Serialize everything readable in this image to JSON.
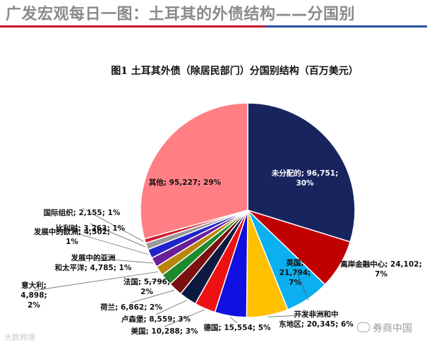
{
  "header": {
    "title": "广发宏观每日一图：土耳其的外债结构——分国别"
  },
  "chart_data": {
    "type": "pie",
    "title": "图1  土耳其外债（除居民部门）分国别结构（百万美元）",
    "slices": [
      {
        "label": "未分配的",
        "value": 96751,
        "value_text": "96,751",
        "pct": "30%",
        "color": "#17245e"
      },
      {
        "label": "离岸金融中心",
        "value": 24102,
        "value_text": "24,102",
        "pct": "7%",
        "color": "#c00000"
      },
      {
        "label": "英国",
        "value": 21794,
        "value_text": "21,794",
        "pct": "7%",
        "color": "#0ab0ef"
      },
      {
        "label": "开发非洲和中东地区",
        "value": 20345,
        "value_text": "20,345",
        "pct": "6%",
        "color": "#ffc000"
      },
      {
        "label": "德国",
        "value": 15554,
        "value_text": "15,554",
        "pct": "5%",
        "color": "#1010e0"
      },
      {
        "label": "美国",
        "value": 10288,
        "value_text": "10,288",
        "pct": "3%",
        "color": "#ee1111"
      },
      {
        "label": "卢森堡",
        "value": 8559,
        "value_text": "8,559",
        "pct": "3%",
        "color": "#0d1a40"
      },
      {
        "label": "荷兰",
        "value": 6862,
        "value_text": "6,862",
        "pct": "2%",
        "color": "#7a1010"
      },
      {
        "label": "法国",
        "value": 5796,
        "value_text": "5,796",
        "pct": "2%",
        "color": "#1e8a2e"
      },
      {
        "label": "意大利",
        "value": 4898,
        "value_text": "4,898",
        "pct": "2%",
        "color": "#b8860b"
      },
      {
        "label": "发展中的亚洲和太平洋",
        "value": 4785,
        "value_text": "4,785",
        "pct": "1%",
        "color": "#6a1f99"
      },
      {
        "label": "发展中的欧洲",
        "value": 4502,
        "value_text": "4,502",
        "pct": "1%",
        "color": "#2222cc"
      },
      {
        "label": "比利时",
        "value": 3263,
        "value_text": "3,263",
        "pct": "1%",
        "color": "#9a9a9a"
      },
      {
        "label": "国际组织",
        "value": 2155,
        "value_text": "2,155",
        "pct": "1%",
        "color": "#d21a2a"
      },
      {
        "label": "其他",
        "value": 95227,
        "value_text": "95,227",
        "pct": "29%",
        "color": "#ff7f85"
      }
    ],
    "legend": "none"
  },
  "watermarks": {
    "bottom_left": "大数跨境",
    "bottom_right": "券商中国"
  }
}
